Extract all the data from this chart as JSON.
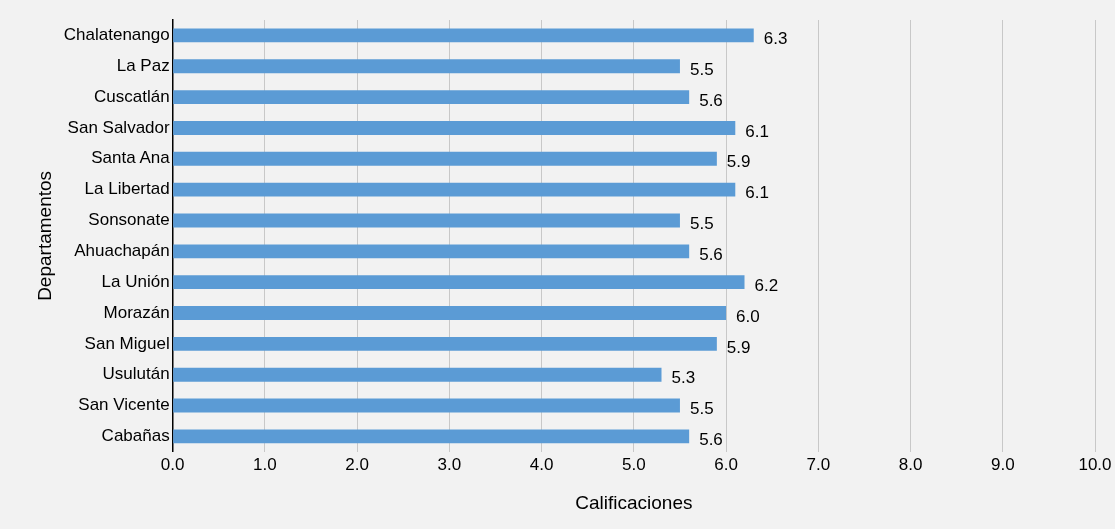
{
  "chart_data": {
    "type": "bar",
    "orientation": "horizontal",
    "xlabel": "Calificaciones",
    "ylabel": "Departamentos",
    "categories": [
      "Chalatenango",
      "La Paz",
      "Cuscatlán",
      "San Salvador",
      "Santa Ana",
      "La Libertad",
      "Sonsonate",
      "Ahuachapán",
      "La Unión",
      "Morazán",
      "San Miguel",
      "Usulután",
      "San Vicente",
      "Cabañas"
    ],
    "values": [
      6.3,
      5.5,
      5.6,
      6.1,
      5.9,
      6.1,
      5.5,
      5.6,
      6.2,
      6.0,
      5.9,
      5.3,
      5.5,
      5.6
    ],
    "value_labels": [
      "6.3",
      "5.5",
      "5.6",
      "6.1",
      "5.9",
      "6.1",
      "5.5",
      "5.6",
      "6.2",
      "6.0",
      "5.9",
      "5.3",
      "5.5",
      "5.6"
    ],
    "color": "#5b9bd5",
    "xlim": [
      0,
      10
    ],
    "xticks": [
      {
        "value": 0,
        "label": "0.0"
      },
      {
        "value": 1,
        "label": "1.0"
      },
      {
        "value": 2,
        "label": "2.0"
      },
      {
        "value": 3,
        "label": "3.0"
      },
      {
        "value": 4,
        "label": "4.0"
      },
      {
        "value": 5,
        "label": "5.0"
      },
      {
        "value": 6,
        "label": "6.0"
      },
      {
        "value": 7,
        "label": "7.0"
      },
      {
        "value": 8,
        "label": "8.0"
      },
      {
        "value": 9,
        "label": "9.0"
      },
      {
        "value": 10,
        "label": "10.0"
      }
    ],
    "grid": "x",
    "legend": false
  }
}
